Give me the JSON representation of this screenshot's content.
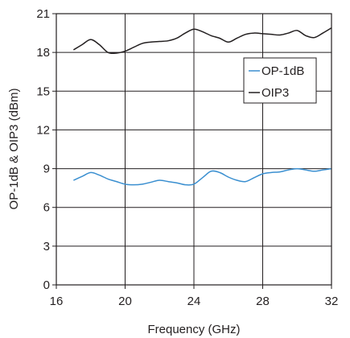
{
  "chart_data": {
    "type": "line",
    "xlabel": "Frequency (GHz)",
    "ylabel": "OP-1dB & OIP3 (dBm)",
    "xlim": [
      16,
      32
    ],
    "ylim": [
      0,
      21
    ],
    "x_ticks": [
      16,
      20,
      24,
      28,
      32
    ],
    "y_ticks": [
      0,
      3,
      6,
      9,
      12,
      15,
      18,
      21
    ],
    "grid": true,
    "legend_position": "right, upper middle",
    "series": [
      {
        "name": "OP-1dB",
        "color": "#3a8fd0",
        "x": [
          17.0,
          17.5,
          18.0,
          18.5,
          19.0,
          19.5,
          20.0,
          20.5,
          21.0,
          21.5,
          22.0,
          22.5,
          23.0,
          23.5,
          24.0,
          24.5,
          25.0,
          25.5,
          26.0,
          26.5,
          27.0,
          27.5,
          28.0,
          28.5,
          29.0,
          29.5,
          30.0,
          30.5,
          31.0,
          31.5,
          32.0
        ],
        "y": [
          8.1,
          8.4,
          8.7,
          8.5,
          8.2,
          8.0,
          7.8,
          7.75,
          7.8,
          7.95,
          8.1,
          8.0,
          7.9,
          7.75,
          7.8,
          8.3,
          8.8,
          8.7,
          8.35,
          8.1,
          8.0,
          8.3,
          8.6,
          8.7,
          8.75,
          8.9,
          9.0,
          8.9,
          8.8,
          8.9,
          9.0
        ]
      },
      {
        "name": "OIP3",
        "color": "#231f20",
        "x": [
          17.0,
          17.5,
          18.0,
          18.5,
          19.0,
          19.5,
          20.0,
          20.5,
          21.0,
          21.5,
          22.0,
          22.5,
          23.0,
          23.5,
          24.0,
          24.5,
          25.0,
          25.5,
          26.0,
          26.5,
          27.0,
          27.5,
          28.0,
          28.5,
          29.0,
          29.5,
          30.0,
          30.5,
          31.0,
          31.5,
          32.0
        ],
        "y": [
          18.2,
          18.6,
          19.0,
          18.6,
          18.0,
          17.95,
          18.1,
          18.4,
          18.7,
          18.8,
          18.85,
          18.9,
          19.1,
          19.5,
          19.8,
          19.6,
          19.3,
          19.1,
          18.8,
          19.1,
          19.4,
          19.5,
          19.45,
          19.4,
          19.35,
          19.5,
          19.7,
          19.3,
          19.15,
          19.5,
          19.9
        ]
      }
    ]
  }
}
